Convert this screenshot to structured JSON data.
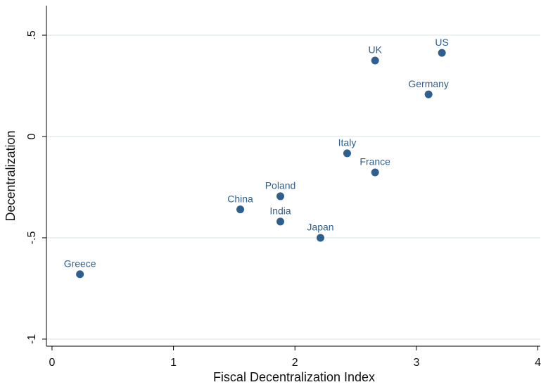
{
  "chart_data": {
    "type": "scatter",
    "x_label": "Fiscal Decentralization Index",
    "y_label": "Decentralization",
    "labels": [
      "Greece",
      "China",
      "Poland",
      "India",
      "Japan",
      "Italy",
      "France",
      "UK",
      "US",
      "Germany"
    ],
    "x": [
      0.23,
      1.55,
      1.88,
      1.88,
      2.21,
      2.43,
      2.66,
      2.66,
      3.21,
      3.1
    ],
    "values": [
      -0.68,
      -0.36,
      -0.295,
      -0.42,
      -0.5,
      -0.083,
      -0.177,
      0.375,
      0.413,
      0.208
    ],
    "color": "#2f5f8f",
    "xlim": [
      -0.046,
      4.02
    ],
    "ylim": [
      -1.035,
      0.646
    ],
    "xticks": [
      0,
      1,
      2,
      3,
      4
    ],
    "yticks": [
      {
        "value": 0.5,
        "label": ".5"
      },
      0,
      {
        "value": -0.5,
        "label": "-.5"
      },
      -1
    ],
    "grid": true
  }
}
